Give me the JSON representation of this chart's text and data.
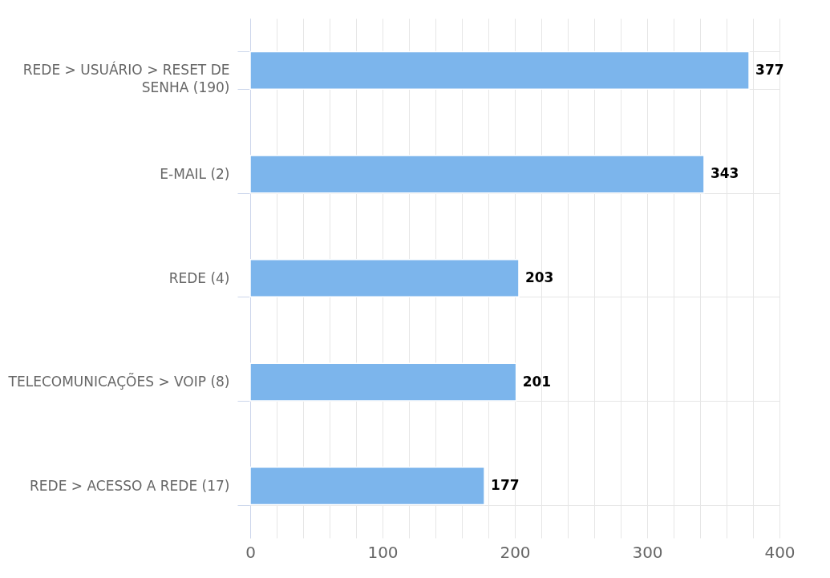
{
  "chart_data": {
    "type": "bar",
    "orientation": "horizontal",
    "categories": [
      "REDE > USUÁRIO > RESET DE SENHA (190)",
      "E-MAIL (2)",
      "REDE (4)",
      "TELECOMUNICAÇÕES > VOIP (8)",
      "REDE > ACESSO A REDE (17)"
    ],
    "values": [
      377,
      343,
      203,
      201,
      177
    ],
    "color": "#7cb5ec",
    "xlim": [
      0,
      400
    ],
    "xticks": [
      0,
      {
        "value": 20,
        "label": null
      },
      {
        "value": 40,
        "label": null
      },
      {
        "value": 60,
        "label": null
      },
      {
        "value": 80,
        "label": null
      },
      100,
      {
        "value": 120,
        "label": null
      },
      {
        "value": 140,
        "label": null
      },
      {
        "value": 160,
        "label": null
      },
      {
        "value": 180,
        "label": null
      },
      200,
      {
        "value": 220,
        "label": null
      },
      {
        "value": 240,
        "label": null
      },
      {
        "value": 260,
        "label": null
      },
      {
        "value": 280,
        "label": null
      },
      300,
      {
        "value": 320,
        "label": null
      },
      {
        "value": 340,
        "label": null
      },
      {
        "value": 360,
        "label": null
      },
      {
        "value": 380,
        "label": null
      },
      400
    ],
    "grid": true,
    "data_labels": true
  }
}
